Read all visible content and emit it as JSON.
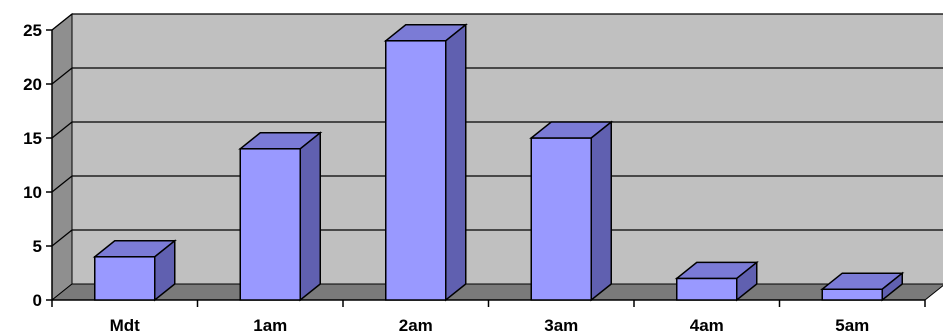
{
  "chart_data": {
    "type": "bar",
    "style": "3d-column",
    "categories": [
      "Mdt",
      "1am",
      "2am",
      "3am",
      "4am",
      "5am"
    ],
    "values": [
      4,
      14,
      24,
      15,
      2,
      1
    ],
    "title": "",
    "xlabel": "",
    "ylabel": "",
    "ylim": [
      0,
      25
    ],
    "yticks": [
      "0",
      "5",
      "10",
      "15",
      "20",
      "25"
    ],
    "grid": true,
    "legend": "none",
    "colors": {
      "bar_front": "#9999ff",
      "bar_top": "#7b7bd6",
      "bar_side": "#6060b0",
      "plot_wall": "#c0c0c0",
      "side_wall": "#8f8f8f",
      "floor": "#7a7a7a",
      "gridline": "#000000"
    }
  }
}
